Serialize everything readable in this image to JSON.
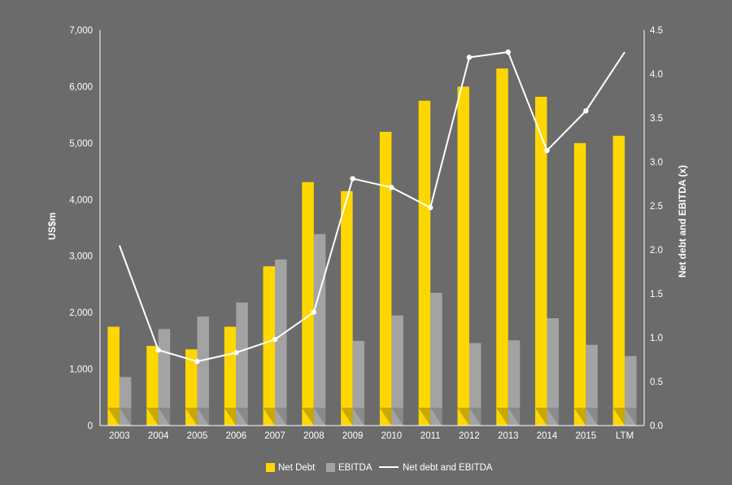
{
  "chart_data": {
    "type": "bar",
    "categories": [
      "2003",
      "2004",
      "2005",
      "2006",
      "2007",
      "2008",
      "2009",
      "2010",
      "2011",
      "2012",
      "2013",
      "2014",
      "2015",
      "LTM"
    ],
    "series": [
      {
        "name": "Net Debt",
        "type": "bar",
        "axis": "left",
        "color": "#ffd700",
        "values": [
          1750,
          1410,
          1350,
          1750,
          2820,
          4310,
          4150,
          5200,
          5750,
          6000,
          6320,
          5820,
          5000,
          5130
        ]
      },
      {
        "name": "EBITDA",
        "type": "bar",
        "axis": "left",
        "color": "#a3a3a3",
        "values": [
          860,
          1710,
          1930,
          2180,
          2940,
          3390,
          1500,
          1950,
          2350,
          1460,
          1510,
          1900,
          1430,
          1230
        ]
      },
      {
        "name": "Net debt and EBITDA",
        "type": "line",
        "axis": "right",
        "color": "#ffffff",
        "values": [
          2.05,
          0.86,
          0.73,
          0.83,
          0.98,
          1.29,
          2.81,
          2.71,
          2.48,
          4.19,
          4.25,
          3.13,
          3.58,
          4.25
        ]
      }
    ],
    "ylabel": "US$m",
    "y2label": "Net debt and EBITDA (x)",
    "ylim": [
      0,
      7000
    ],
    "y2lim": [
      0,
      4.5
    ],
    "yticks": [
      "0",
      "1,000",
      "2,000",
      "3,000",
      "4,000",
      "5,000",
      "6,000",
      "7,000"
    ],
    "y2ticks": [
      "0.0",
      "0.5",
      "1.0",
      "1.5",
      "2.0",
      "2.5",
      "3.0",
      "3.5",
      "4.0",
      "4.5"
    ],
    "grid": false,
    "legend_position": "bottom"
  }
}
